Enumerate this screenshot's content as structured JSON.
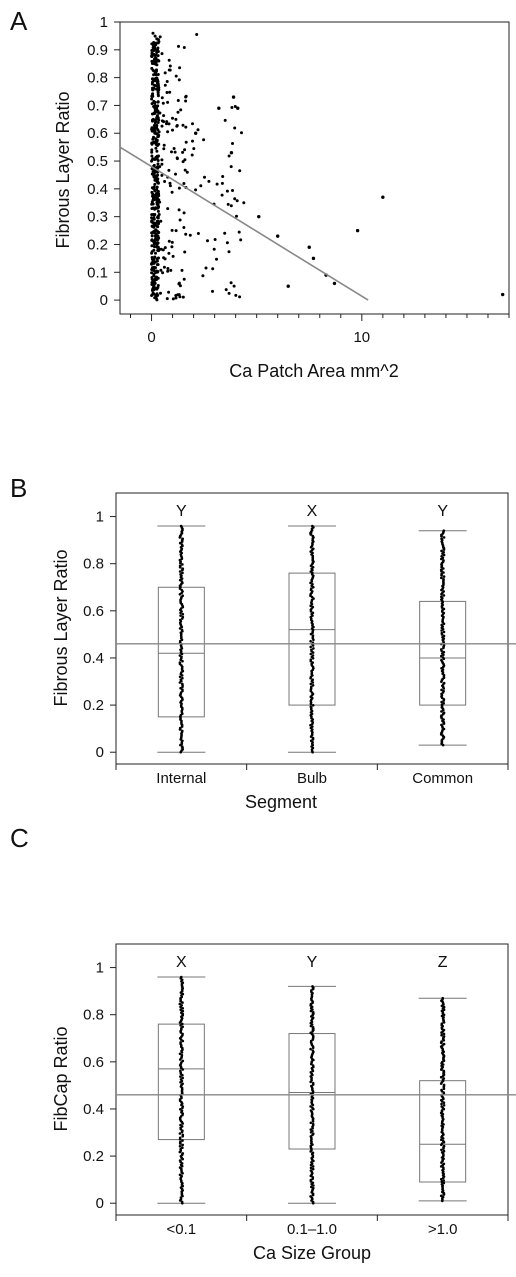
{
  "chart_data": [
    {
      "panel": "A",
      "type": "scatter",
      "xlabel": "Ca Patch Area mm^2",
      "ylabel": "Fibrous Layer Ratio",
      "xlim": [
        -1.5,
        17
      ],
      "ylim": [
        -0.05,
        1
      ],
      "x_ticks": [
        0,
        10
      ],
      "y_ticks": [
        0,
        0.1,
        0.2,
        0.3,
        0.4,
        0.5,
        0.6,
        0.7,
        0.8,
        0.9,
        1
      ],
      "fit_line": {
        "x": [
          -1.5,
          10.3
        ],
        "y": [
          0.55,
          0
        ]
      },
      "outlier_points": [
        {
          "x": 11.0,
          "y": 0.37
        },
        {
          "x": 9.8,
          "y": 0.25
        },
        {
          "x": 16.7,
          "y": 0.02
        },
        {
          "x": 8.7,
          "y": 0.06
        },
        {
          "x": 8.3,
          "y": 0.09
        },
        {
          "x": 7.5,
          "y": 0.19
        },
        {
          "x": 7.7,
          "y": 0.15
        },
        {
          "x": 5.1,
          "y": 0.3
        },
        {
          "x": 6.0,
          "y": 0.23
        },
        {
          "x": 6.5,
          "y": 0.05
        },
        {
          "x": 3.9,
          "y": 0.73
        },
        {
          "x": 4.1,
          "y": 0.69
        },
        {
          "x": 3.8,
          "y": 0.53
        },
        {
          "x": 3.2,
          "y": 0.69
        },
        {
          "x": 2.1,
          "y": 0.6
        }
      ],
      "cluster_note_count": 600
    },
    {
      "panel": "B",
      "type": "box",
      "xlabel": "Segment",
      "ylabel": "Fibrous Layer Ratio",
      "ylim": [
        -0.05,
        1.1
      ],
      "y_ticks": [
        0,
        0.2,
        0.4,
        0.6,
        0.8,
        1
      ],
      "categories": [
        "Internal",
        "Bulb",
        "Common"
      ],
      "letters": [
        "Y",
        "X",
        "Y"
      ],
      "mean_line": 0.46,
      "boxes": [
        {
          "min": 0.0,
          "q1": 0.15,
          "median": 0.42,
          "q3": 0.7,
          "max": 0.96
        },
        {
          "min": 0.0,
          "q1": 0.2,
          "median": 0.52,
          "q3": 0.76,
          "max": 0.96
        },
        {
          "min": 0.03,
          "q1": 0.2,
          "median": 0.4,
          "q3": 0.64,
          "max": 0.94
        }
      ]
    },
    {
      "panel": "C",
      "type": "box",
      "xlabel": "Ca Size Group",
      "ylabel": "FibCap Ratio",
      "ylim": [
        -0.05,
        1.1
      ],
      "y_ticks": [
        0,
        0.2,
        0.4,
        0.6,
        0.8,
        1
      ],
      "categories": [
        "<0.1",
        "0.1–1.0",
        ">1.0"
      ],
      "letters": [
        "X",
        "Y",
        "Z"
      ],
      "mean_line": 0.46,
      "boxes": [
        {
          "min": 0.0,
          "q1": 0.27,
          "median": 0.57,
          "q3": 0.76,
          "max": 0.96
        },
        {
          "min": 0.0,
          "q1": 0.23,
          "median": 0.47,
          "q3": 0.72,
          "max": 0.92
        },
        {
          "min": 0.01,
          "q1": 0.09,
          "median": 0.25,
          "q3": 0.52,
          "max": 0.87
        }
      ]
    }
  ],
  "labels": {
    "panelA": "A",
    "panelB": "B",
    "panelC": "C"
  }
}
